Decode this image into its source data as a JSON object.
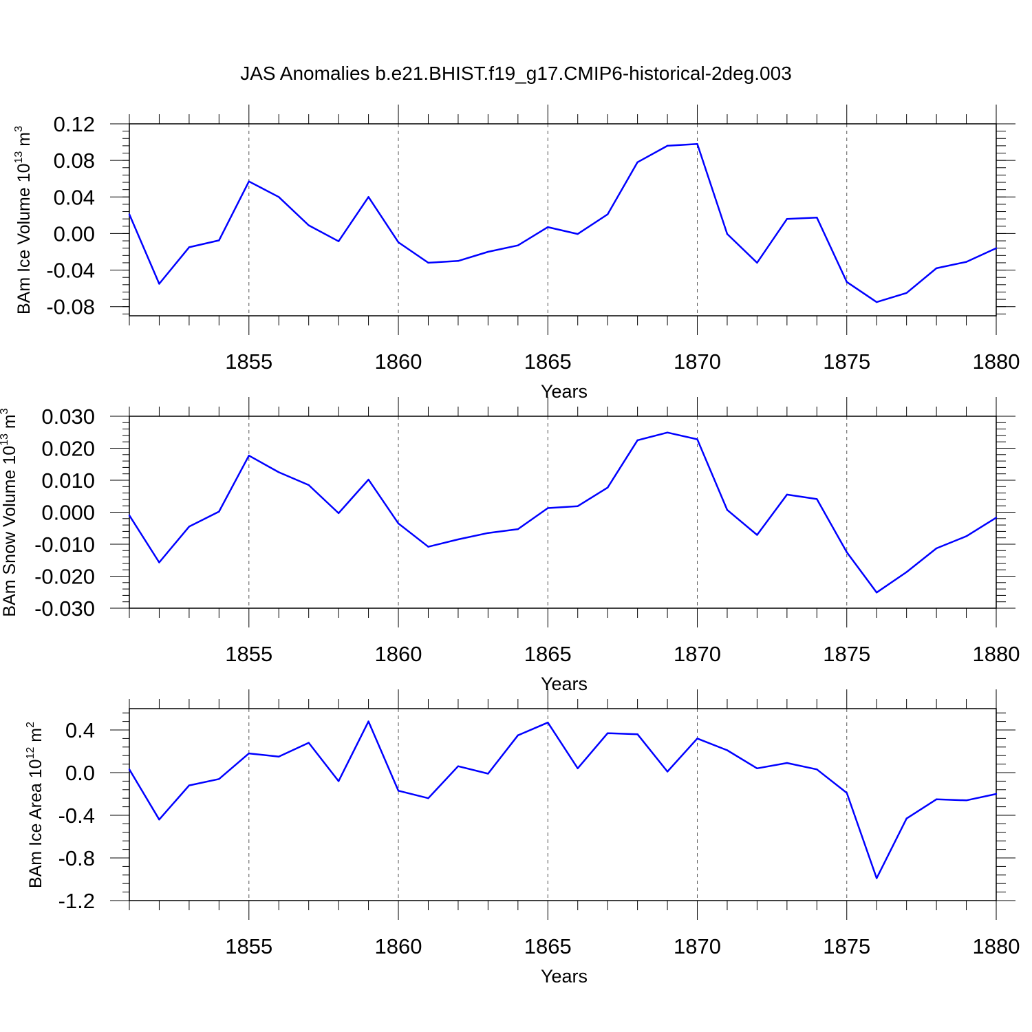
{
  "title": "JAS Anomalies b.e21.BHIST.f19_g17.CMIP6-historical-2deg.003",
  "chart_data": [
    {
      "type": "line",
      "ylabel": {
        "text": "BAm Ice Volume 10",
        "exp": "13",
        "unit": " m",
        "unit_exp": "3"
      },
      "xlabel": "Years",
      "xlim": [
        1851,
        1880
      ],
      "ylim": [
        -0.09,
        0.12
      ],
      "xticks": [
        1855,
        1860,
        1865,
        1870,
        1875,
        1880
      ],
      "yticks": [
        0.12,
        0.08,
        0.04,
        0.0,
        -0.04,
        -0.08
      ],
      "ytick_labels": [
        "0.12",
        "0.08",
        "0.04",
        "0.00",
        "-0.04",
        "-0.08"
      ],
      "line_color": "#0000ff",
      "series": [
        {
          "name": "ice volume",
          "x": [
            1851,
            1852,
            1853,
            1854,
            1855,
            1856,
            1857,
            1858,
            1859,
            1860,
            1861,
            1862,
            1863,
            1864,
            1865,
            1866,
            1867,
            1868,
            1869,
            1870,
            1871,
            1872,
            1873,
            1874,
            1875,
            1876,
            1877,
            1878,
            1879,
            1880
          ],
          "values": [
            0.021,
            -0.055,
            -0.015,
            -0.0075,
            0.057,
            0.04,
            0.009,
            -0.0085,
            0.04,
            -0.0095,
            -0.032,
            -0.03,
            -0.02,
            -0.013,
            0.007,
            -0.0005,
            0.021,
            0.078,
            0.096,
            0.098,
            -0.0005,
            -0.032,
            0.016,
            0.0175,
            -0.053,
            -0.075,
            -0.065,
            -0.038,
            -0.031,
            -0.016
          ]
        }
      ]
    },
    {
      "type": "line",
      "ylabel": {
        "text": "BAm Snow Volume 10",
        "exp": "13",
        "unit": " m",
        "unit_exp": "3"
      },
      "xlabel": "Years",
      "xlim": [
        1851,
        1880
      ],
      "ylim": [
        -0.03,
        0.03
      ],
      "xticks": [
        1855,
        1860,
        1865,
        1870,
        1875,
        1880
      ],
      "yticks": [
        0.03,
        0.02,
        0.01,
        0.0,
        -0.01,
        -0.02,
        -0.03
      ],
      "ytick_labels": [
        "0.030",
        "0.020",
        "0.010",
        "0.000",
        "-0.010",
        "-0.020",
        "-0.030"
      ],
      "line_color": "#0000ff",
      "series": [
        {
          "name": "snow volume",
          "x": [
            1851,
            1852,
            1853,
            1854,
            1855,
            1856,
            1857,
            1858,
            1859,
            1860,
            1861,
            1862,
            1863,
            1864,
            1865,
            1866,
            1867,
            1868,
            1869,
            1870,
            1871,
            1872,
            1873,
            1874,
            1875,
            1876,
            1877,
            1878,
            1879,
            1880
          ],
          "values": [
            -0.001,
            -0.0157,
            -0.0045,
            0.0002,
            0.0177,
            0.0125,
            0.0085,
            -0.0003,
            0.0102,
            -0.0035,
            -0.0108,
            -0.0085,
            -0.0065,
            -0.0053,
            0.0013,
            0.0019,
            0.0077,
            0.0225,
            0.0249,
            0.0228,
            0.0007,
            -0.0071,
            0.0055,
            0.0041,
            -0.0125,
            -0.0251,
            -0.0187,
            -0.0113,
            -0.0075,
            -0.0017
          ]
        }
      ]
    },
    {
      "type": "line",
      "ylabel": {
        "text": "BAm Ice Area 10",
        "exp": "12",
        "unit": " m",
        "unit_exp": "2"
      },
      "xlabel": "Years",
      "xlim": [
        1851,
        1880
      ],
      "ylim": [
        -1.2,
        0.6
      ],
      "xticks": [
        1855,
        1860,
        1865,
        1870,
        1875,
        1880
      ],
      "yticks": [
        0.4,
        0.0,
        -0.4,
        -0.8,
        -1.2
      ],
      "ytick_labels": [
        "0.4",
        "0.0",
        "-0.4",
        "-0.8",
        "-1.2"
      ],
      "line_color": "#0000ff",
      "series": [
        {
          "name": "ice area",
          "x": [
            1851,
            1852,
            1853,
            1854,
            1855,
            1856,
            1857,
            1858,
            1859,
            1860,
            1861,
            1862,
            1863,
            1864,
            1865,
            1866,
            1867,
            1868,
            1869,
            1870,
            1871,
            1872,
            1873,
            1874,
            1875,
            1876,
            1877,
            1878,
            1879,
            1880
          ],
          "values": [
            0.03,
            -0.44,
            -0.12,
            -0.06,
            0.18,
            0.15,
            0.28,
            -0.08,
            0.48,
            -0.17,
            -0.24,
            0.06,
            -0.01,
            0.35,
            0.47,
            0.04,
            0.37,
            0.36,
            0.01,
            0.32,
            0.21,
            0.04,
            0.09,
            0.03,
            -0.19,
            -0.99,
            -0.43,
            -0.25,
            -0.26,
            -0.2
          ]
        }
      ]
    }
  ]
}
